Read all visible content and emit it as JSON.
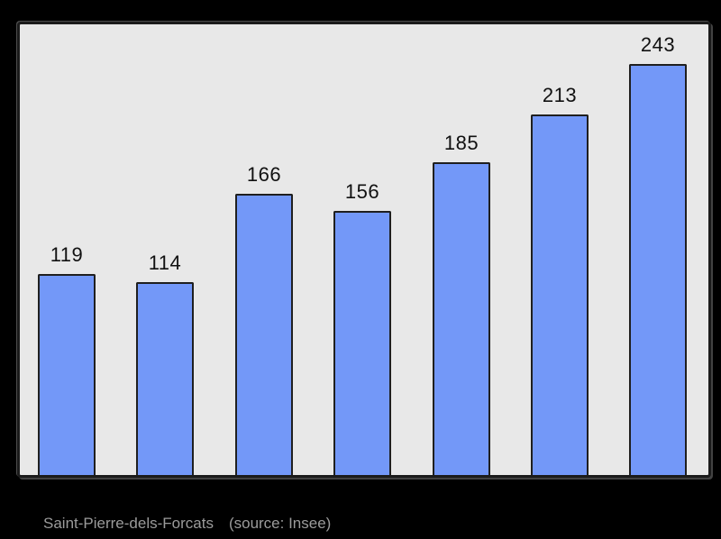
{
  "chart_data": {
    "type": "bar",
    "values": [
      119,
      114,
      166,
      156,
      185,
      213,
      243
    ],
    "categories": [],
    "title": "",
    "xlabel": "",
    "ylabel": "",
    "ylim": [
      0,
      266
    ],
    "grid": false,
    "legend": "none",
    "value_labels_shown": true,
    "bar_color": "#7398f8",
    "bar_border_color": "#1f1f1f",
    "plot_background": "#e8e8e8",
    "frame_border_color": "#1b1b1b",
    "value_label_color": "#111111",
    "page_background": "#000000"
  },
  "caption": {
    "title": "Saint-Pierre-dels-Forcats",
    "source": "(source: Insee)",
    "color": "#9b9b9b"
  }
}
